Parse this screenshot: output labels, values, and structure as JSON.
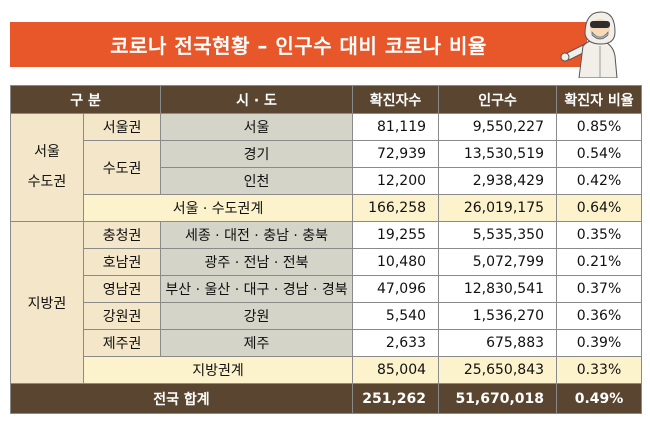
{
  "title": "코로나 전국현황 – 인구수 대비 코로나 비율",
  "headers": {
    "category": "구 분",
    "city": "시 · 도",
    "confirmed": "확진자수",
    "population": "인구수",
    "ratio": "확진자 비율"
  },
  "capital": {
    "region_line1": "서울",
    "region_line2": "수도권",
    "seoul_area": "서울권",
    "metro_area": "수도권",
    "rows": [
      {
        "city": "서울",
        "confirmed": "81,119",
        "population": "9,550,227",
        "ratio": "0.85%"
      },
      {
        "city": "경기",
        "confirmed": "72,939",
        "population": "13,530,519",
        "ratio": "0.54%"
      },
      {
        "city": "인천",
        "confirmed": "12,200",
        "population": "2,938,429",
        "ratio": "0.42%"
      }
    ],
    "subtotal": {
      "label": "서울 · 수도권계",
      "confirmed": "166,258",
      "population": "26,019,175",
      "ratio": "0.64%"
    }
  },
  "local": {
    "region": "지방권",
    "rows": [
      {
        "area": "충청권",
        "city": "세종 · 대전 · 충남 · 충북",
        "confirmed": "19,255",
        "population": "5,535,350",
        "ratio": "0.35%"
      },
      {
        "area": "호남권",
        "city": "광주 · 전남 · 전북",
        "confirmed": "10,480",
        "population": "5,072,799",
        "ratio": "0.21%"
      },
      {
        "area": "영남권",
        "city": "부산 · 울산 · 대구 · 경남 · 경북",
        "confirmed": "47,096",
        "population": "12,830,541",
        "ratio": "0.37%"
      },
      {
        "area": "강원권",
        "city": "강원",
        "confirmed": "5,540",
        "population": "1,536,270",
        "ratio": "0.36%"
      },
      {
        "area": "제주권",
        "city": "제주",
        "confirmed": "2,633",
        "population": "675,883",
        "ratio": "0.39%"
      }
    ],
    "subtotal": {
      "label": "지방권계",
      "confirmed": "85,004",
      "population": "25,650,843",
      "ratio": "0.33%"
    }
  },
  "total": {
    "label": "전국 합계",
    "confirmed": "251,262",
    "population": "51,670,018",
    "ratio": "0.49%"
  },
  "colors": {
    "banner": "#e8572a",
    "header": "#5a4630",
    "tan": "#f3e6c9",
    "gray": "#d4d5c8",
    "yellow": "#fcf3cc"
  },
  "icons": {
    "mascot": "hazmat-suit-worker-illustration"
  }
}
